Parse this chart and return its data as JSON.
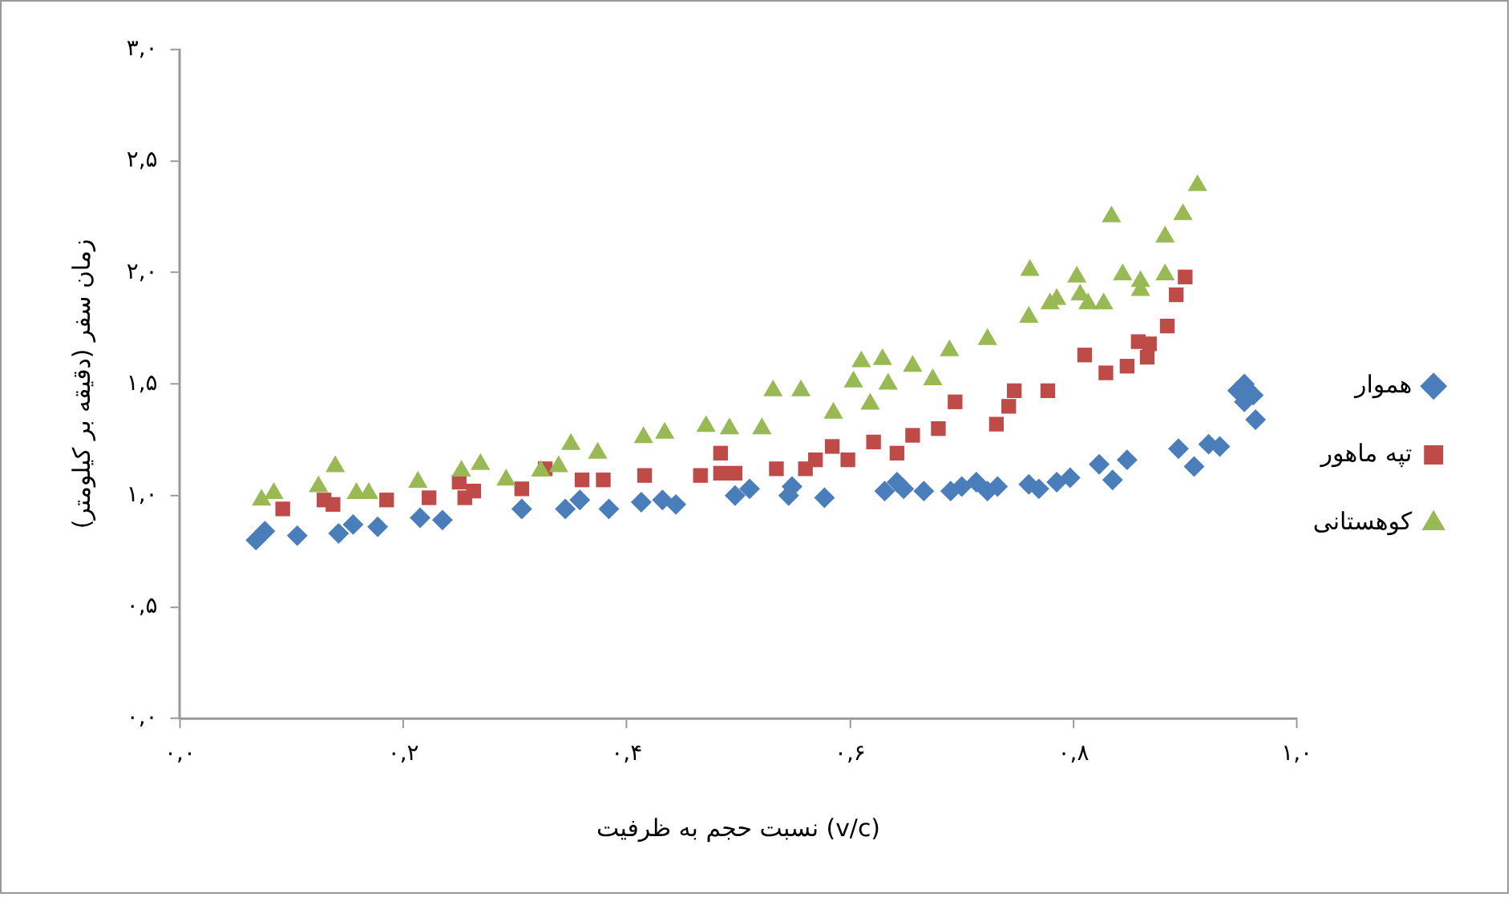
{
  "chart_data": {
    "type": "scatter",
    "xlabel": "نسبت حجم به ظرفیت (v/c)",
    "ylabel": "زمان سفر (دقیقه بر کیلومتر)",
    "xlim": [
      0,
      1
    ],
    "xticks": [
      {
        "value": 0,
        "label": "۰,۰"
      },
      {
        "value": 0.2,
        "label": "۰,۲"
      },
      {
        "value": 0.4,
        "label": "۰,۴"
      },
      {
        "value": 0.6,
        "label": "۰,۶"
      },
      {
        "value": 0.8,
        "label": "۰,۸"
      },
      {
        "value": 1,
        "label": "۱,۰"
      }
    ],
    "ylim": [
      0,
      3
    ],
    "yticks": [
      {
        "value": 0,
        "label": "۰,۰"
      },
      {
        "value": 0.5,
        "label": "۰,۵"
      },
      {
        "value": 1,
        "label": "۱,۰"
      },
      {
        "value": 1.5,
        "label": "۱,۵"
      },
      {
        "value": 2,
        "label": "۲,۰"
      },
      {
        "value": 2.5,
        "label": "۲,۵"
      },
      {
        "value": 3,
        "label": "۳,۰"
      }
    ],
    "grid": false,
    "legend": "right",
    "series": [
      {
        "name": "هموار",
        "color": "#4a7ebb",
        "marker": "diamond",
        "x": [
          0.068,
          0.076,
          0.105,
          0.142,
          0.155,
          0.177,
          0.215,
          0.235,
          0.306,
          0.345,
          0.358,
          0.384,
          0.413,
          0.432,
          0.444,
          0.497,
          0.51,
          0.545,
          0.548,
          0.577,
          0.631,
          0.642,
          0.648,
          0.666,
          0.69,
          0.7,
          0.713,
          0.723,
          0.732,
          0.76,
          0.769,
          0.785,
          0.797,
          0.823,
          0.835,
          0.848,
          0.894,
          0.908,
          0.921,
          0.931,
          0.947,
          0.953,
          0.953,
          0.961,
          0.963
        ],
        "values": [
          0.8,
          0.84,
          0.82,
          0.83,
          0.87,
          0.86,
          0.9,
          0.89,
          0.94,
          0.94,
          0.98,
          0.94,
          0.97,
          0.98,
          0.96,
          1.0,
          1.03,
          1.0,
          1.04,
          0.99,
          1.02,
          1.06,
          1.03,
          1.02,
          1.02,
          1.04,
          1.06,
          1.02,
          1.04,
          1.05,
          1.03,
          1.06,
          1.08,
          1.14,
          1.07,
          1.16,
          1.21,
          1.13,
          1.23,
          1.22,
          1.47,
          1.5,
          1.42,
          1.45,
          1.34
        ]
      },
      {
        "name": "تپه ماهور",
        "color": "#be4b48",
        "marker": "square",
        "x": [
          0.092,
          0.129,
          0.137,
          0.185,
          0.223,
          0.25,
          0.255,
          0.263,
          0.306,
          0.327,
          0.36,
          0.379,
          0.416,
          0.466,
          0.484,
          0.484,
          0.497,
          0.534,
          0.56,
          0.569,
          0.584,
          0.598,
          0.621,
          0.642,
          0.656,
          0.679,
          0.694,
          0.731,
          0.742,
          0.747,
          0.777,
          0.81,
          0.829,
          0.848,
          0.858,
          0.866,
          0.868,
          0.884,
          0.892,
          0.9
        ],
        "values": [
          0.94,
          0.98,
          0.96,
          0.98,
          0.99,
          1.06,
          0.99,
          1.02,
          1.03,
          1.12,
          1.07,
          1.07,
          1.09,
          1.09,
          1.19,
          1.1,
          1.1,
          1.12,
          1.12,
          1.16,
          1.22,
          1.16,
          1.24,
          1.19,
          1.27,
          1.3,
          1.42,
          1.32,
          1.4,
          1.47,
          1.47,
          1.63,
          1.55,
          1.58,
          1.69,
          1.62,
          1.68,
          1.76,
          1.9,
          1.98
        ]
      },
      {
        "name": "کوهستانی",
        "color": "#98b954",
        "marker": "triangle",
        "x": [
          0.073,
          0.084,
          0.124,
          0.139,
          0.158,
          0.169,
          0.213,
          0.252,
          0.269,
          0.292,
          0.323,
          0.339,
          0.35,
          0.374,
          0.415,
          0.434,
          0.471,
          0.492,
          0.521,
          0.531,
          0.556,
          0.585,
          0.603,
          0.61,
          0.618,
          0.629,
          0.634,
          0.656,
          0.674,
          0.689,
          0.723,
          0.76,
          0.761,
          0.779,
          0.785,
          0.803,
          0.806,
          0.813,
          0.827,
          0.834,
          0.844,
          0.86,
          0.86,
          0.882,
          0.882,
          0.898,
          0.911
        ],
        "values": [
          0.98,
          1.01,
          1.04,
          1.13,
          1.01,
          1.01,
          1.06,
          1.11,
          1.14,
          1.07,
          1.11,
          1.13,
          1.23,
          1.19,
          1.26,
          1.28,
          1.31,
          1.3,
          1.3,
          1.47,
          1.47,
          1.37,
          1.51,
          1.6,
          1.41,
          1.61,
          1.5,
          1.58,
          1.52,
          1.65,
          1.7,
          1.8,
          2.01,
          1.86,
          1.88,
          1.98,
          1.9,
          1.86,
          1.86,
          2.25,
          1.99,
          1.96,
          1.92,
          2.16,
          1.99,
          2.26,
          2.39
        ]
      }
    ]
  }
}
